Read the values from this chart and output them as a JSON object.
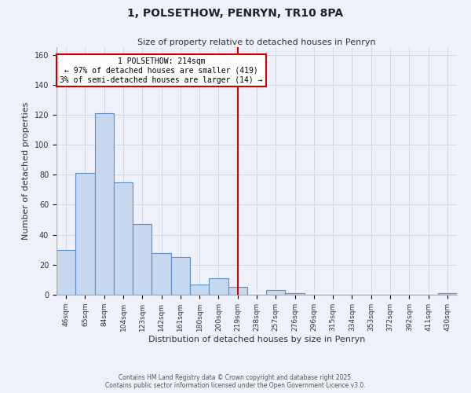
{
  "title": "1, POLSETHOW, PENRYN, TR10 8PA",
  "subtitle": "Size of property relative to detached houses in Penryn",
  "xlabel": "Distribution of detached houses by size in Penryn",
  "ylabel": "Number of detached properties",
  "bar_color": "#c5d8ee",
  "bar_edge_color": "#5b8fc7",
  "categories": [
    "46sqm",
    "65sqm",
    "84sqm",
    "104sqm",
    "123sqm",
    "142sqm",
    "161sqm",
    "180sqm",
    "200sqm",
    "219sqm",
    "238sqm",
    "257sqm",
    "276sqm",
    "296sqm",
    "315sqm",
    "334sqm",
    "353sqm",
    "372sqm",
    "392sqm",
    "411sqm",
    "430sqm"
  ],
  "values": [
    30,
    81,
    121,
    75,
    47,
    28,
    25,
    7,
    11,
    5,
    0,
    3,
    1,
    0,
    0,
    0,
    0,
    0,
    0,
    0,
    1
  ],
  "vline_index": 9,
  "vline_color": "#cc0000",
  "annotation_text": "1 POLSETHOW: 214sqm\n← 97% of detached houses are smaller (419)\n3% of semi-detached houses are larger (14) →",
  "annotation_box_color": "#ffffff",
  "annotation_box_edge": "#cc0000",
  "ylim": [
    0,
    165
  ],
  "yticks": [
    0,
    20,
    40,
    60,
    80,
    100,
    120,
    140,
    160
  ],
  "grid_color": "#d0d8e8",
  "bg_color": "#eef1f9",
  "footer_line1": "Contains HM Land Registry data © Crown copyright and database right 2025.",
  "footer_line2": "Contains public sector information licensed under the Open Government Licence v3.0."
}
